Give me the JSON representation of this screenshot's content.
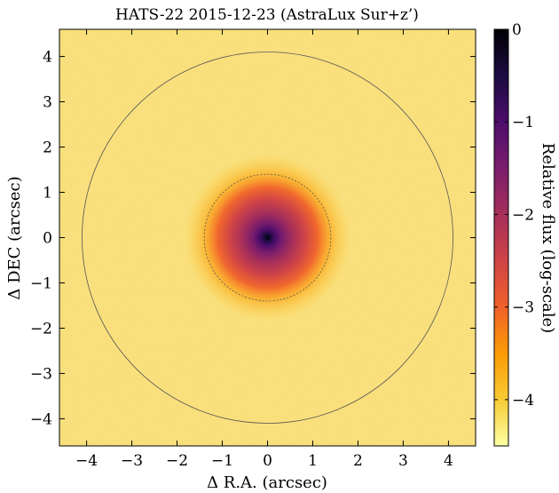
{
  "chart_data": {
    "type": "heatmap",
    "title": "HATS-22 2015-12-23 (AstraLux Sur+z’)",
    "xlabel": "Δ R.A. (arcsec)",
    "ylabel": "Δ DEC (arcsec)",
    "colorbar_label": "Relative flux (log-scale)",
    "xlim": [
      -4.6,
      4.6
    ],
    "ylim": [
      -4.6,
      4.6
    ],
    "x_ticks": [
      -4,
      -3,
      -2,
      -1,
      0,
      1,
      2,
      3,
      4
    ],
    "y_ticks": [
      -4,
      -3,
      -2,
      -1,
      0,
      1,
      2,
      3,
      4
    ],
    "colorbar_range": [
      -4.5,
      0
    ],
    "colorbar_ticks": [
      0,
      -1,
      -2,
      -3,
      -4
    ],
    "colormap": "inferno",
    "colormap_stops": [
      "#fcffa4",
      "#f8cb34",
      "#fb9b06",
      "#f0612a",
      "#cf4446",
      "#a62f5a",
      "#7a1d6d",
      "#4d0d6b",
      "#1b0c41",
      "#000004"
    ],
    "source": {
      "x": 0,
      "y": 0,
      "peak_log_flux": 0,
      "background_log_flux": -4.3
    },
    "circles_arcsec": [
      1.4,
      4.1
    ],
    "circle_color": "#555555",
    "background_color": "#f9df7a"
  }
}
